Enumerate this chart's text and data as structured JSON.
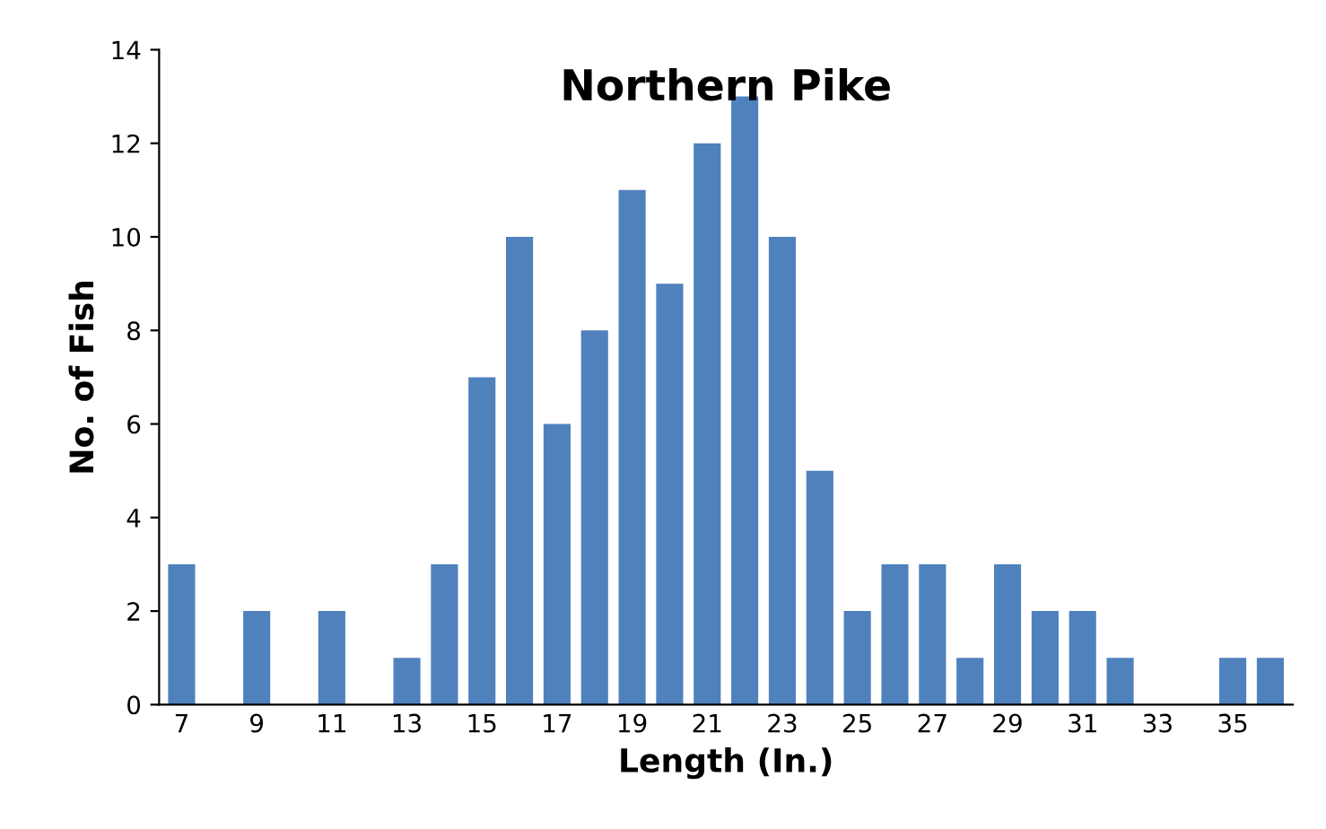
{
  "chart_data": {
    "type": "bar",
    "title": "Northern Pike",
    "xlabel": "Length (In.)",
    "ylabel": "No. of Fish",
    "categories": [
      "7",
      null,
      "9",
      null,
      "11",
      null,
      "13",
      null,
      "15",
      null,
      "17",
      null,
      "19",
      null,
      "21",
      null,
      "23",
      null,
      "25",
      null,
      "27",
      null,
      "29",
      null,
      "31",
      null,
      "33",
      null,
      "35",
      null
    ],
    "values": [
      3,
      0,
      2,
      0,
      2,
      0,
      1,
      3,
      7,
      10,
      6,
      8,
      11,
      9,
      12,
      13,
      10,
      5,
      2,
      3,
      3,
      1,
      3,
      2,
      2,
      1,
      0,
      0,
      1,
      1
    ],
    "color": "#4f81bd",
    "ylim": [
      0,
      14
    ],
    "yticks": [
      0,
      2,
      4,
      6,
      8,
      10,
      12,
      14
    ],
    "grid": false,
    "legend": false
  }
}
